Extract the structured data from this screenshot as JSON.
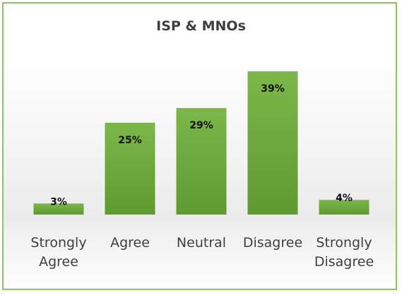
{
  "chart_data": {
    "type": "bar",
    "title": "ISP & MNOs",
    "categories": [
      [
        "Strongly",
        "Agree"
      ],
      [
        "Agree"
      ],
      [
        "Neutral"
      ],
      [
        "Disagree"
      ],
      [
        "Strongly",
        "Disagree"
      ]
    ],
    "values": [
      3,
      25,
      29,
      39,
      4
    ],
    "value_labels": [
      "3%",
      "25%",
      "29%",
      "39%",
      "4%"
    ],
    "unit": "%",
    "xlabel": "",
    "ylabel": "",
    "ylim": [
      0,
      39
    ],
    "grid": false,
    "legend": "none",
    "colors": {
      "bar_top": "#7cb74a",
      "bar_bottom": "#5e9a2f",
      "border": "#8fc45a"
    }
  }
}
